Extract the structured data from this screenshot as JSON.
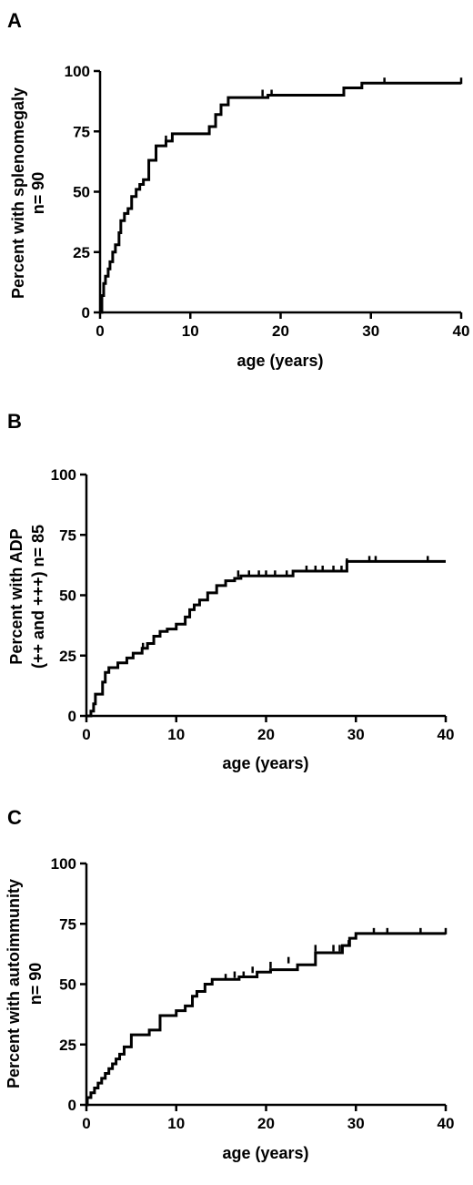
{
  "chart_data": [
    {
      "type": "line",
      "panel": "A",
      "ylabel_lines": [
        "Percent with splenomegaly",
        "n= 90"
      ],
      "xlabel": "age (years)",
      "xlim": [
        0,
        40
      ],
      "ylim": [
        0,
        100
      ],
      "x_ticks": [
        0,
        10,
        20,
        30,
        40
      ],
      "y_ticks": [
        0,
        25,
        50,
        75,
        100
      ],
      "steps": [
        [
          0,
          0
        ],
        [
          0.2,
          7
        ],
        [
          0.4,
          12
        ],
        [
          0.6,
          15
        ],
        [
          0.9,
          18
        ],
        [
          1.1,
          21
        ],
        [
          1.4,
          25
        ],
        [
          1.7,
          28
        ],
        [
          2.1,
          33
        ],
        [
          2.3,
          38
        ],
        [
          2.7,
          41
        ],
        [
          3.1,
          43
        ],
        [
          3.5,
          48
        ],
        [
          4.0,
          51
        ],
        [
          4.4,
          53
        ],
        [
          4.8,
          55
        ],
        [
          5.4,
          63
        ],
        [
          6.2,
          69
        ],
        [
          7.3,
          71
        ],
        [
          8.0,
          74
        ],
        [
          12.1,
          77
        ],
        [
          12.8,
          82
        ],
        [
          13.4,
          86
        ],
        [
          14.2,
          89
        ],
        [
          18.6,
          90
        ],
        [
          27.0,
          93
        ],
        [
          29.0,
          95
        ],
        [
          40,
          95
        ]
      ],
      "censored": [
        [
          7.3,
          71
        ],
        [
          18.0,
          90
        ],
        [
          19.0,
          90
        ],
        [
          31.5,
          95
        ],
        [
          40,
          95
        ]
      ]
    },
    {
      "type": "line",
      "panel": "B",
      "ylabel_lines": [
        "Percent with ADP",
        "(++ and +++) n= 85"
      ],
      "xlabel": "age (years)",
      "xlim": [
        0,
        40
      ],
      "ylim": [
        0,
        100
      ],
      "x_ticks": [
        0,
        10,
        20,
        30,
        40
      ],
      "y_ticks": [
        0,
        25,
        50,
        75,
        100
      ],
      "steps": [
        [
          0,
          0
        ],
        [
          0.5,
          2
        ],
        [
          0.8,
          5
        ],
        [
          1.0,
          9
        ],
        [
          1.8,
          14
        ],
        [
          2.1,
          18
        ],
        [
          2.5,
          20
        ],
        [
          3.5,
          22
        ],
        [
          4.5,
          24
        ],
        [
          5.2,
          26
        ],
        [
          6.2,
          28
        ],
        [
          6.8,
          30
        ],
        [
          7.5,
          33
        ],
        [
          8.2,
          35
        ],
        [
          9.0,
          36
        ],
        [
          10.0,
          38
        ],
        [
          11.0,
          41
        ],
        [
          11.5,
          44
        ],
        [
          12.0,
          46
        ],
        [
          12.6,
          48
        ],
        [
          13.5,
          51
        ],
        [
          14.5,
          54
        ],
        [
          15.5,
          56
        ],
        [
          16.5,
          57
        ],
        [
          17.2,
          58
        ],
        [
          23.0,
          60
        ],
        [
          29.0,
          64
        ],
        [
          40,
          64
        ]
      ],
      "censored": [
        [
          6.3,
          28
        ],
        [
          16.9,
          58
        ],
        [
          18.1,
          58
        ],
        [
          19.2,
          58
        ],
        [
          20.0,
          58
        ],
        [
          21.0,
          58
        ],
        [
          22.3,
          58
        ],
        [
          24.5,
          60
        ],
        [
          25.5,
          60
        ],
        [
          26.3,
          60
        ],
        [
          27.5,
          60
        ],
        [
          28.4,
          60
        ],
        [
          29.0,
          63
        ],
        [
          31.5,
          64
        ],
        [
          32.2,
          64
        ],
        [
          38.0,
          64
        ]
      ]
    },
    {
      "type": "line",
      "panel": "C",
      "ylabel_lines": [
        "Percent with autoimmunity",
        "n= 90"
      ],
      "xlabel": "age (years)",
      "xlim": [
        0,
        40
      ],
      "ylim": [
        0,
        100
      ],
      "x_ticks": [
        0,
        10,
        20,
        30,
        40
      ],
      "y_ticks": [
        0,
        25,
        50,
        75,
        100
      ],
      "steps": [
        [
          0,
          0
        ],
        [
          0.1,
          3
        ],
        [
          0.5,
          5
        ],
        [
          0.9,
          7
        ],
        [
          1.3,
          9
        ],
        [
          1.7,
          11
        ],
        [
          2.1,
          13
        ],
        [
          2.5,
          15
        ],
        [
          2.9,
          17
        ],
        [
          3.3,
          19
        ],
        [
          3.7,
          21
        ],
        [
          4.2,
          24
        ],
        [
          5.0,
          29
        ],
        [
          7.0,
          31
        ],
        [
          8.2,
          37
        ],
        [
          10.0,
          39
        ],
        [
          11.0,
          41
        ],
        [
          11.8,
          45
        ],
        [
          12.3,
          47
        ],
        [
          13.2,
          50
        ],
        [
          14.0,
          52
        ],
        [
          17.0,
          53
        ],
        [
          19.0,
          55
        ],
        [
          20.5,
          56
        ],
        [
          23.5,
          58
        ],
        [
          25.5,
          63
        ],
        [
          28.5,
          66
        ],
        [
          29.3,
          69
        ],
        [
          30.0,
          71
        ],
        [
          40,
          71
        ]
      ],
      "censored": [
        [
          8.2,
          33
        ],
        [
          15.5,
          52
        ],
        [
          16.5,
          53
        ],
        [
          17.5,
          53
        ],
        [
          18.5,
          55
        ],
        [
          20.5,
          57
        ],
        [
          22.5,
          59
        ],
        [
          25.5,
          64
        ],
        [
          27.5,
          64
        ],
        [
          28.2,
          64
        ],
        [
          29.2,
          66
        ],
        [
          32.0,
          71
        ],
        [
          33.5,
          71
        ],
        [
          37.2,
          71
        ],
        [
          40,
          71
        ]
      ]
    }
  ]
}
